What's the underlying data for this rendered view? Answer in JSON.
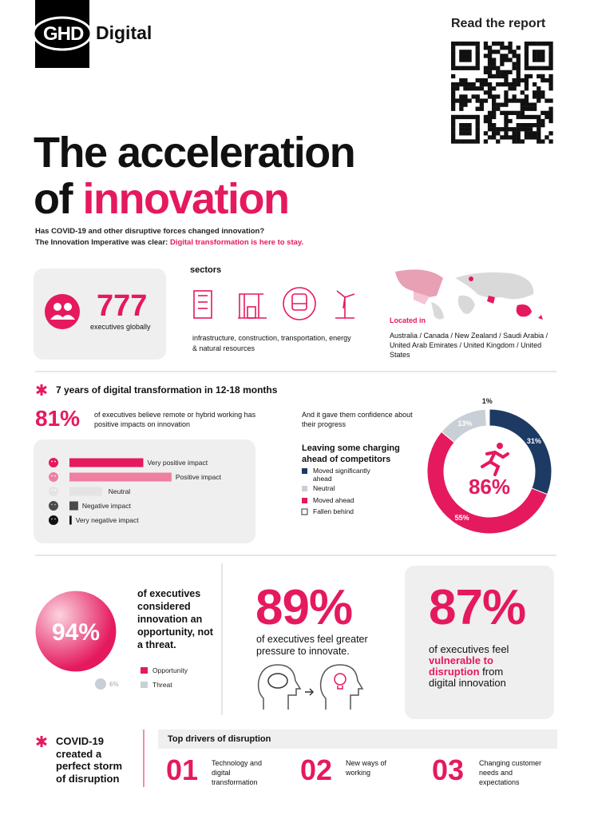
{
  "header": {
    "logo": "GHD",
    "brand": "Digital",
    "report_link": "Read the report"
  },
  "title": {
    "line1": "The acceleration",
    "line2_start": "of",
    "line2_highlight": "innovation"
  },
  "intro": {
    "question": "Has COVID-19 and other disruptive forces changed innovation?",
    "statement": "The Innovation Imperative was clear:",
    "highlight": "Digital transformation is here to stay."
  },
  "respondents": {
    "count": "777",
    "label": "executives globally"
  },
  "sectors": {
    "heading": "sectors",
    "description": "infrastructure, construction, transportation, energy & natural resources"
  },
  "locations": {
    "heading": "Located in",
    "countries": "Australia / Canada / New Zealand / Saudi Arabia / United Arab Emirates / United Kingdom / United States"
  },
  "transformation": {
    "heading": "7 years of digital transformation in 12-18 months",
    "stat": "81%",
    "stat_text": "of executives believe remote or hybrid working has positive impacts on innovation"
  },
  "impact_chart": {
    "type": "bar",
    "orientation": "horizontal",
    "categories": [
      "Very positive impact",
      "Positive impact",
      "Neutral",
      "Negative impact",
      "Very negative impact"
    ],
    "values": [
      34,
      47,
      15,
      4,
      1
    ],
    "colors": [
      "#e5195e",
      "#ee7fa0",
      "#e4e4e4",
      "#4a4a4a",
      "#111111"
    ]
  },
  "confidence": {
    "intro": "And it gave them confidence about their progress",
    "heading": "Leaving some charging ahead of competitors",
    "chart": {
      "type": "pie",
      "donut": true,
      "categories": [
        "Moved significantly ahead",
        "Neutral",
        "Moved ahead",
        "Fallen behind"
      ],
      "values": [
        31,
        13,
        55,
        1
      ],
      "value_labels": [
        "31%",
        "13%",
        "55%",
        "1%"
      ],
      "colors": [
        "#1c3a64",
        "#c9cfd6",
        "#e5195e",
        "#ffffff"
      ],
      "center_label": "86%"
    }
  },
  "opportunity": {
    "text": "of executives considered innovation an opportunity, not a threat.",
    "chart": {
      "type": "bubble",
      "categories": [
        "Opportunity",
        "Threat"
      ],
      "values": [
        94,
        6
      ],
      "value_labels": [
        "94%",
        "6%"
      ],
      "colors": [
        "#e5195e",
        "#c9cfd6"
      ]
    }
  },
  "pressure": {
    "stat": "89%",
    "text": "of executives feel greater pressure to innovate."
  },
  "vulnerability": {
    "stat": "87%",
    "text_start": "of executives feel",
    "highlight": "vulnerable to disruption",
    "text_end": "from digital innovation"
  },
  "covid": {
    "text": "COVID-19 created a perfect storm of disruption"
  },
  "drivers": {
    "heading": "Top drivers of disruption",
    "items": [
      {
        "rank": "01",
        "label": "Technology and digital transformation"
      },
      {
        "rank": "02",
        "label": "New ways of working"
      },
      {
        "rank": "03",
        "label": "Changing customer needs and expectations"
      }
    ]
  }
}
